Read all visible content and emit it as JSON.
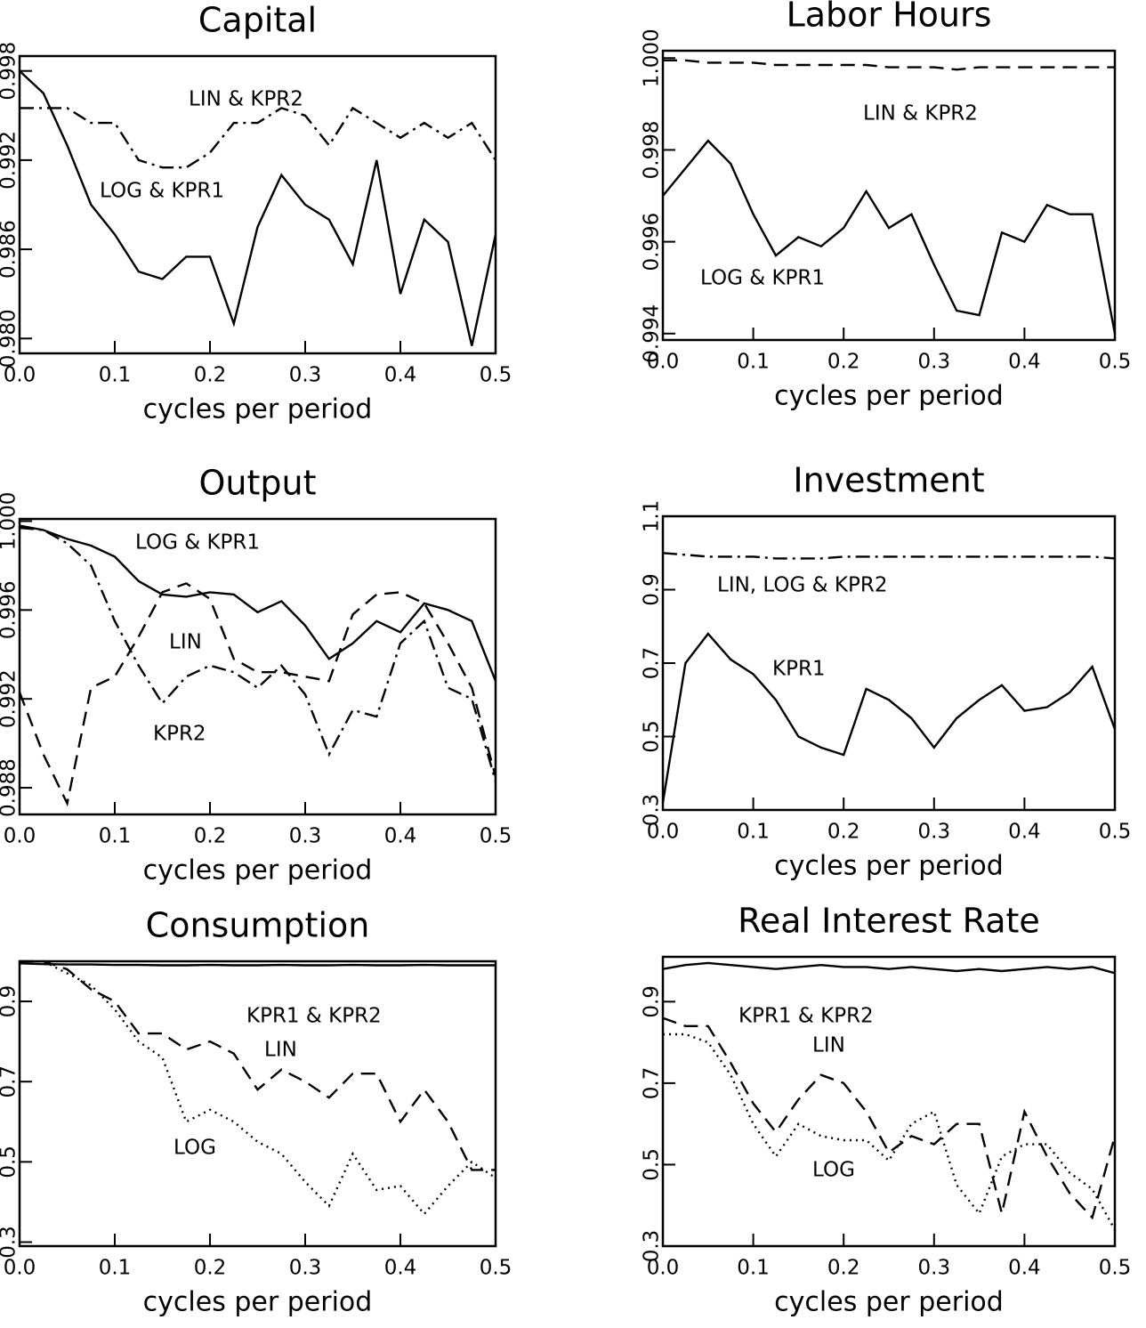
{
  "chart_data": [
    {
      "type": "line",
      "title": "Capital",
      "x_label": "cycles per period",
      "x": [
        0,
        0.025,
        0.05,
        0.075,
        0.1,
        0.125,
        0.15,
        0.175,
        0.2,
        0.225,
        0.25,
        0.275,
        0.3,
        0.325,
        0.35,
        0.375,
        0.4,
        0.425,
        0.45,
        0.475,
        0.5
      ],
      "xlim": [
        0,
        0.5
      ],
      "xticks": [
        {
          "value": 0,
          "label": "0.0"
        },
        0.1,
        0.2,
        0.3,
        0.4,
        0.5
      ],
      "ylim": [
        0.979,
        0.999
      ],
      "yticks": [
        {
          "value": 0.98,
          "label": "0.980"
        },
        0.986,
        0.992,
        0.998
      ],
      "series": [
        {
          "name": "LOG & KPR1",
          "color": "#000000",
          "style": "solid",
          "values": [
            0.998,
            0.9965,
            0.993,
            0.989,
            0.987,
            0.9845,
            0.984,
            0.9855,
            0.9855,
            0.981,
            0.9875,
            0.991,
            0.989,
            0.988,
            0.985,
            0.992,
            0.983,
            0.988,
            0.9865,
            0.9795,
            0.987
          ]
        },
        {
          "name": "LIN & KPR2",
          "color": "#000000",
          "style": "dashdot",
          "values": [
            0.9955,
            0.9955,
            0.9955,
            0.9945,
            0.9945,
            0.992,
            0.9915,
            0.9915,
            0.9925,
            0.9945,
            0.9945,
            0.9955,
            0.995,
            0.993,
            0.9955,
            0.9945,
            0.9935,
            0.9945,
            0.9935,
            0.9945,
            0.992
          ]
        }
      ]
    },
    {
      "type": "line",
      "title": "Labor Hours",
      "x_label": "cycles per period",
      "x": [
        0,
        0.025,
        0.05,
        0.075,
        0.1,
        0.125,
        0.15,
        0.175,
        0.2,
        0.225,
        0.25,
        0.275,
        0.3,
        0.325,
        0.35,
        0.375,
        0.4,
        0.425,
        0.45,
        0.475,
        0.5
      ],
      "xlim": [
        0,
        0.5
      ],
      "xticks": [
        {
          "value": 0,
          "label": "0.0"
        },
        0.1,
        0.2,
        0.3,
        0.4,
        0.5
      ],
      "ylim": [
        0.99386,
        1.00016
      ],
      "yticks": [
        0.994,
        0.996,
        0.998,
        {
          "value": 1,
          "label": "1.000"
        }
      ],
      "series": [
        {
          "name": "LIN & KPR2",
          "color": "#000000",
          "style": "dashed",
          "values": [
            0.99995,
            0.99995,
            0.9999,
            0.9999,
            0.9999,
            0.99985,
            0.99985,
            0.99985,
            0.99985,
            0.99985,
            0.9998,
            0.9998,
            0.9998,
            0.99975,
            0.9998,
            0.9998,
            0.9998,
            0.9998,
            0.9998,
            0.9998,
            0.9998
          ]
        },
        {
          "name": "LOG & KPR1",
          "color": "#000000",
          "style": "solid",
          "values": [
            0.997,
            0.9976,
            0.9982,
            0.9977,
            0.9966,
            0.9957,
            0.9961,
            0.9959,
            0.9963,
            0.9971,
            0.9963,
            0.9966,
            0.9955,
            0.9945,
            0.9944,
            0.9962,
            0.996,
            0.9968,
            0.9966,
            0.9966,
            0.994
          ]
        }
      ]
    },
    {
      "type": "line",
      "title": "Output",
      "x_label": "cycles per period",
      "x": [
        0,
        0.025,
        0.05,
        0.075,
        0.1,
        0.125,
        0.15,
        0.175,
        0.2,
        0.225,
        0.25,
        0.275,
        0.3,
        0.325,
        0.35,
        0.375,
        0.4,
        0.425,
        0.45,
        0.475,
        0.5
      ],
      "xlim": [
        0,
        0.5
      ],
      "xticks": [
        {
          "value": 0,
          "label": "0.0"
        },
        0.1,
        0.2,
        0.3,
        0.4,
        0.5
      ],
      "ylim": [
        0.9868,
        1.0001
      ],
      "yticks": [
        0.988,
        0.992,
        0.996,
        {
          "value": 1,
          "label": "1.000"
        }
      ],
      "series": [
        {
          "name": "LOG & KPR1",
          "color": "#000000",
          "style": "solid",
          "values": [
            0.9998,
            0.9996,
            0.9992,
            0.9989,
            0.9984,
            0.9973,
            0.9967,
            0.9966,
            0.9968,
            0.9967,
            0.9959,
            0.9964,
            0.9953,
            0.9938,
            0.9945,
            0.9955,
            0.995,
            0.9963,
            0.996,
            0.9955,
            0.9928
          ]
        },
        {
          "name": "LIN",
          "color": "#000000",
          "style": "dashdot",
          "values": [
            0.9997,
            0.9996,
            0.999,
            0.998,
            0.9955,
            0.9935,
            0.9918,
            0.993,
            0.9935,
            0.9932,
            0.9925,
            0.9935,
            0.9922,
            0.9895,
            0.9915,
            0.9912,
            0.9945,
            0.9955,
            0.9925,
            0.992,
            0.9883
          ]
        },
        {
          "name": "KPR2",
          "color": "#000000",
          "style": "dashed",
          "values": [
            0.9923,
            0.9895,
            0.9873,
            0.9925,
            0.993,
            0.9948,
            0.9968,
            0.9972,
            0.9965,
            0.9938,
            0.9932,
            0.9932,
            0.993,
            0.9928,
            0.9958,
            0.9967,
            0.9968,
            0.9963,
            0.9945,
            0.9925,
            0.9885
          ]
        }
      ]
    },
    {
      "type": "line",
      "title": "Investment",
      "x_label": "cycles per period",
      "x": [
        0,
        0.025,
        0.05,
        0.075,
        0.1,
        0.125,
        0.15,
        0.175,
        0.2,
        0.225,
        0.25,
        0.275,
        0.3,
        0.325,
        0.35,
        0.375,
        0.4,
        0.425,
        0.45,
        0.475,
        0.5
      ],
      "xlim": [
        0,
        0.5
      ],
      "xticks": [
        {
          "value": 0,
          "label": "0.0"
        },
        0.1,
        0.2,
        0.3,
        0.4,
        0.5
      ],
      "ylim": [
        0.3,
        1.1
      ],
      "yticks": [
        0.3,
        0.5,
        0.7,
        0.9,
        1.1
      ],
      "series": [
        {
          "name": "LIN, LOG & KPR2",
          "color": "#000000",
          "style": "dashdot",
          "values": [
            1.0,
            0.995,
            0.99,
            0.99,
            0.99,
            0.985,
            0.985,
            0.985,
            0.99,
            0.99,
            0.99,
            0.99,
            0.99,
            0.99,
            0.99,
            0.99,
            0.99,
            0.99,
            0.99,
            0.99,
            0.985
          ]
        },
        {
          "name": "KPR1",
          "color": "#000000",
          "style": "solid",
          "values": [
            0.32,
            0.7,
            0.78,
            0.71,
            0.67,
            0.6,
            0.5,
            0.47,
            0.45,
            0.63,
            0.6,
            0.55,
            0.47,
            0.55,
            0.6,
            0.64,
            0.57,
            0.58,
            0.62,
            0.69,
            0.52
          ]
        }
      ]
    },
    {
      "type": "line",
      "title": "Consumption",
      "x_label": "cycles per period",
      "x": [
        0,
        0.025,
        0.05,
        0.075,
        0.1,
        0.125,
        0.15,
        0.175,
        0.2,
        0.225,
        0.25,
        0.275,
        0.3,
        0.325,
        0.35,
        0.375,
        0.4,
        0.425,
        0.45,
        0.475,
        0.5
      ],
      "xlim": [
        0,
        0.5
      ],
      "xticks": [
        {
          "value": 0,
          "label": "0.0"
        },
        0.1,
        0.2,
        0.3,
        0.4,
        0.5
      ],
      "ylim": [
        0.29,
        1.0
      ],
      "yticks": [
        0.3,
        0.5,
        0.7,
        0.9
      ],
      "series": [
        {
          "name": "KPR1 & KPR2",
          "color": "#000000",
          "style": "solid",
          "values": [
            0.995,
            0.993,
            0.992,
            0.992,
            0.991,
            0.991,
            0.99,
            0.99,
            0.991,
            0.99,
            0.99,
            0.991,
            0.99,
            0.99,
            0.991,
            0.99,
            0.99,
            0.991,
            0.99,
            0.99,
            0.99
          ]
        },
        {
          "name": "LIN",
          "color": "#000000",
          "style": "dashed",
          "values": [
            1.0,
            1.0,
            0.98,
            0.93,
            0.9,
            0.82,
            0.82,
            0.78,
            0.8,
            0.77,
            0.68,
            0.73,
            0.7,
            0.66,
            0.72,
            0.72,
            0.6,
            0.68,
            0.6,
            0.48,
            0.48
          ]
        },
        {
          "name": "LOG",
          "color": "#000000",
          "style": "dotted",
          "values": [
            1.0,
            1.0,
            0.97,
            0.94,
            0.88,
            0.8,
            0.76,
            0.6,
            0.63,
            0.6,
            0.55,
            0.52,
            0.45,
            0.39,
            0.52,
            0.43,
            0.44,
            0.37,
            0.44,
            0.5,
            0.46
          ]
        }
      ]
    },
    {
      "type": "line",
      "title": "Real Interest Rate",
      "x_label": "cycles per period",
      "x": [
        0,
        0.025,
        0.05,
        0.075,
        0.1,
        0.125,
        0.15,
        0.175,
        0.2,
        0.225,
        0.25,
        0.275,
        0.3,
        0.325,
        0.35,
        0.375,
        0.4,
        0.425,
        0.45,
        0.475,
        0.5
      ],
      "xlim": [
        0,
        0.5
      ],
      "xticks": [
        {
          "value": 0,
          "label": "0.0"
        },
        0.1,
        0.2,
        0.3,
        0.4,
        0.5
      ],
      "ylim": [
        0.3,
        1.01
      ],
      "yticks": [
        0.3,
        0.5,
        0.7,
        0.9
      ],
      "series": [
        {
          "name": "KPR1 & KPR2",
          "color": "#000000",
          "style": "solid",
          "values": [
            0.98,
            0.99,
            0.995,
            0.99,
            0.985,
            0.98,
            0.985,
            0.99,
            0.985,
            0.985,
            0.98,
            0.985,
            0.98,
            0.975,
            0.98,
            0.975,
            0.98,
            0.985,
            0.98,
            0.985,
            0.97
          ]
        },
        {
          "name": "LIN",
          "color": "#000000",
          "style": "dashed",
          "values": [
            0.86,
            0.84,
            0.84,
            0.75,
            0.65,
            0.58,
            0.66,
            0.72,
            0.7,
            0.63,
            0.53,
            0.57,
            0.55,
            0.6,
            0.6,
            0.38,
            0.63,
            0.52,
            0.43,
            0.37,
            0.57
          ]
        },
        {
          "name": "LOG",
          "color": "#000000",
          "style": "dotted",
          "values": [
            0.82,
            0.82,
            0.8,
            0.72,
            0.6,
            0.52,
            0.6,
            0.57,
            0.56,
            0.56,
            0.51,
            0.6,
            0.63,
            0.45,
            0.38,
            0.52,
            0.55,
            0.55,
            0.48,
            0.44,
            0.34
          ]
        }
      ]
    }
  ]
}
